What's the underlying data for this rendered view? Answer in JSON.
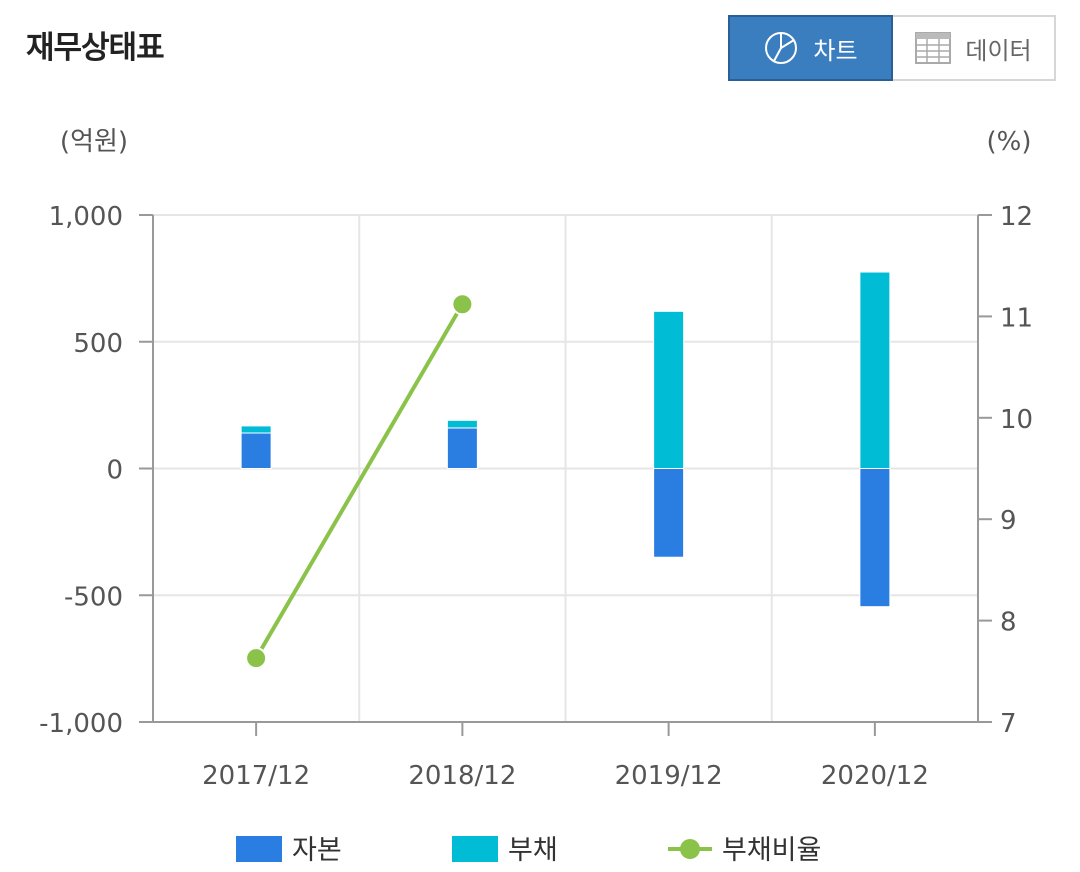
{
  "header": {
    "title": "재무상태표",
    "toggle": [
      {
        "label": "차트",
        "icon": "pie-chart-icon",
        "active": true
      },
      {
        "label": "데이터",
        "icon": "table-icon",
        "active": false
      }
    ]
  },
  "colors": {
    "capital": "#2a7de1",
    "debt": "#00bcd4",
    "ratio": "#8bc34a",
    "active_button": "#3b7ec0"
  },
  "chart_data": {
    "type": "bar",
    "categories": [
      "2017/12",
      "2018/12",
      "2019/12",
      "2020/12"
    ],
    "series": [
      {
        "name": "자본",
        "type": "bar",
        "axis": "left",
        "values": [
          140,
          160,
          -350,
          -545
        ]
      },
      {
        "name": "부채",
        "type": "bar",
        "axis": "left",
        "values": [
          28,
          30,
          620,
          775
        ]
      },
      {
        "name": "부채비율",
        "type": "line",
        "axis": "right",
        "values": [
          7.63,
          11.12,
          null,
          null
        ]
      }
    ],
    "left_axis": {
      "unit": "(억원)",
      "ylim": [
        -1000,
        1000
      ],
      "ticks": [
        "1,000",
        "500",
        "0",
        "-500",
        "-1,000"
      ],
      "tick_values": [
        1000,
        500,
        0,
        -500,
        -1000
      ]
    },
    "right_axis": {
      "unit": "(%)",
      "ylim": [
        7,
        12
      ],
      "ticks": [
        "12",
        "11",
        "10",
        "9",
        "8",
        "7"
      ],
      "tick_values": [
        12,
        11,
        10,
        9,
        8,
        7
      ]
    },
    "grid": true,
    "legend_position": "bottom"
  }
}
